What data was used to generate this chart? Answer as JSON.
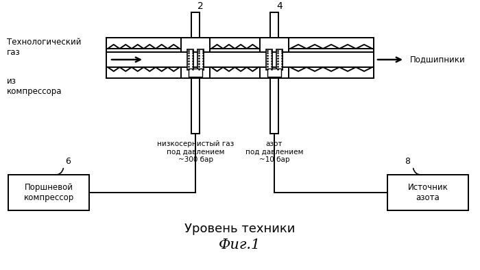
{
  "title_main": "Уровень техники",
  "title_fig": "Фиг.1",
  "bg_color": "#ffffff",
  "line_color": "#000000",
  "label_tech_gas": "Технологический\nгаз",
  "label_iz_kompressora": "из\nкомпрессора",
  "label_podshipniki": "Подшипники",
  "label_2": "2",
  "label_4": "4",
  "label_6": "6",
  "label_8": "8",
  "label_low_sulfur": "низкосернистый газ\nпод давлением\n~300 бар",
  "label_nitrogen": "азот\nпод давлением\n~10 бар",
  "label_box1": "Поршневой\nкомпрессор",
  "label_box2": "Источник\nазота",
  "figsize": [
    7.0,
    3.94
  ],
  "dpi": 100
}
